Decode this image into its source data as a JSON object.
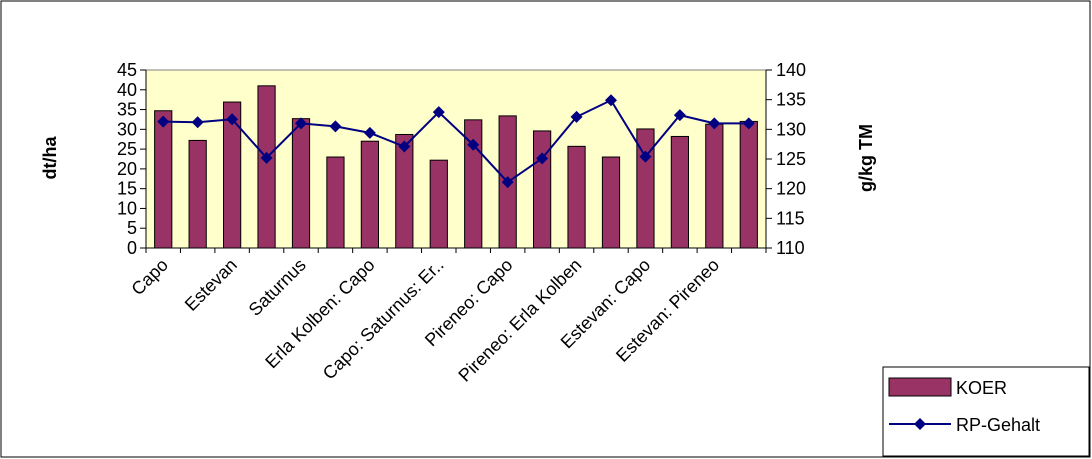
{
  "chart_data": {
    "type": "bar",
    "categories": [
      "Capo",
      "",
      "Estevan",
      "",
      "Saturnus",
      "",
      "Erla Kolben: Capo",
      "",
      "Capo: Saturnus: Er..",
      "",
      "Pireneo: Capo",
      "",
      "Pireneo: Erla Kolben",
      "",
      "Estevan: Capo",
      "",
      "Estevan: Pireneo",
      ""
    ],
    "series": [
      {
        "name": "KOER",
        "type": "bar",
        "axis": "left",
        "color": "#993366",
        "values": [
          34.7,
          27.2,
          36.9,
          41.0,
          32.7,
          23.0,
          27.0,
          28.7,
          22.2,
          32.4,
          33.4,
          29.6,
          25.7,
          23.0,
          30.1,
          28.2,
          31.3,
          32.0
        ]
      },
      {
        "name": "RP-Gehalt",
        "type": "line",
        "axis": "right",
        "color": "#000080",
        "values": [
          131.3,
          131.2,
          131.7,
          125.2,
          131.0,
          130.5,
          129.4,
          127.1,
          132.9,
          127.4,
          121.1,
          125.1,
          132.1,
          134.9,
          125.4,
          132.4,
          131.0,
          131.0
        ]
      }
    ],
    "ylabel": "dt/ha",
    "y2label": "g/kg TM",
    "ylim": [
      0,
      45
    ],
    "y_ticks": [
      0,
      5,
      10,
      15,
      20,
      25,
      30,
      35,
      40,
      45
    ],
    "y2lim": [
      110,
      140
    ],
    "y2_ticks": [
      110,
      115,
      120,
      125,
      130,
      135,
      140
    ],
    "legend_position": "bottom-right",
    "plot_background": "#ffffcc",
    "grid": false
  }
}
